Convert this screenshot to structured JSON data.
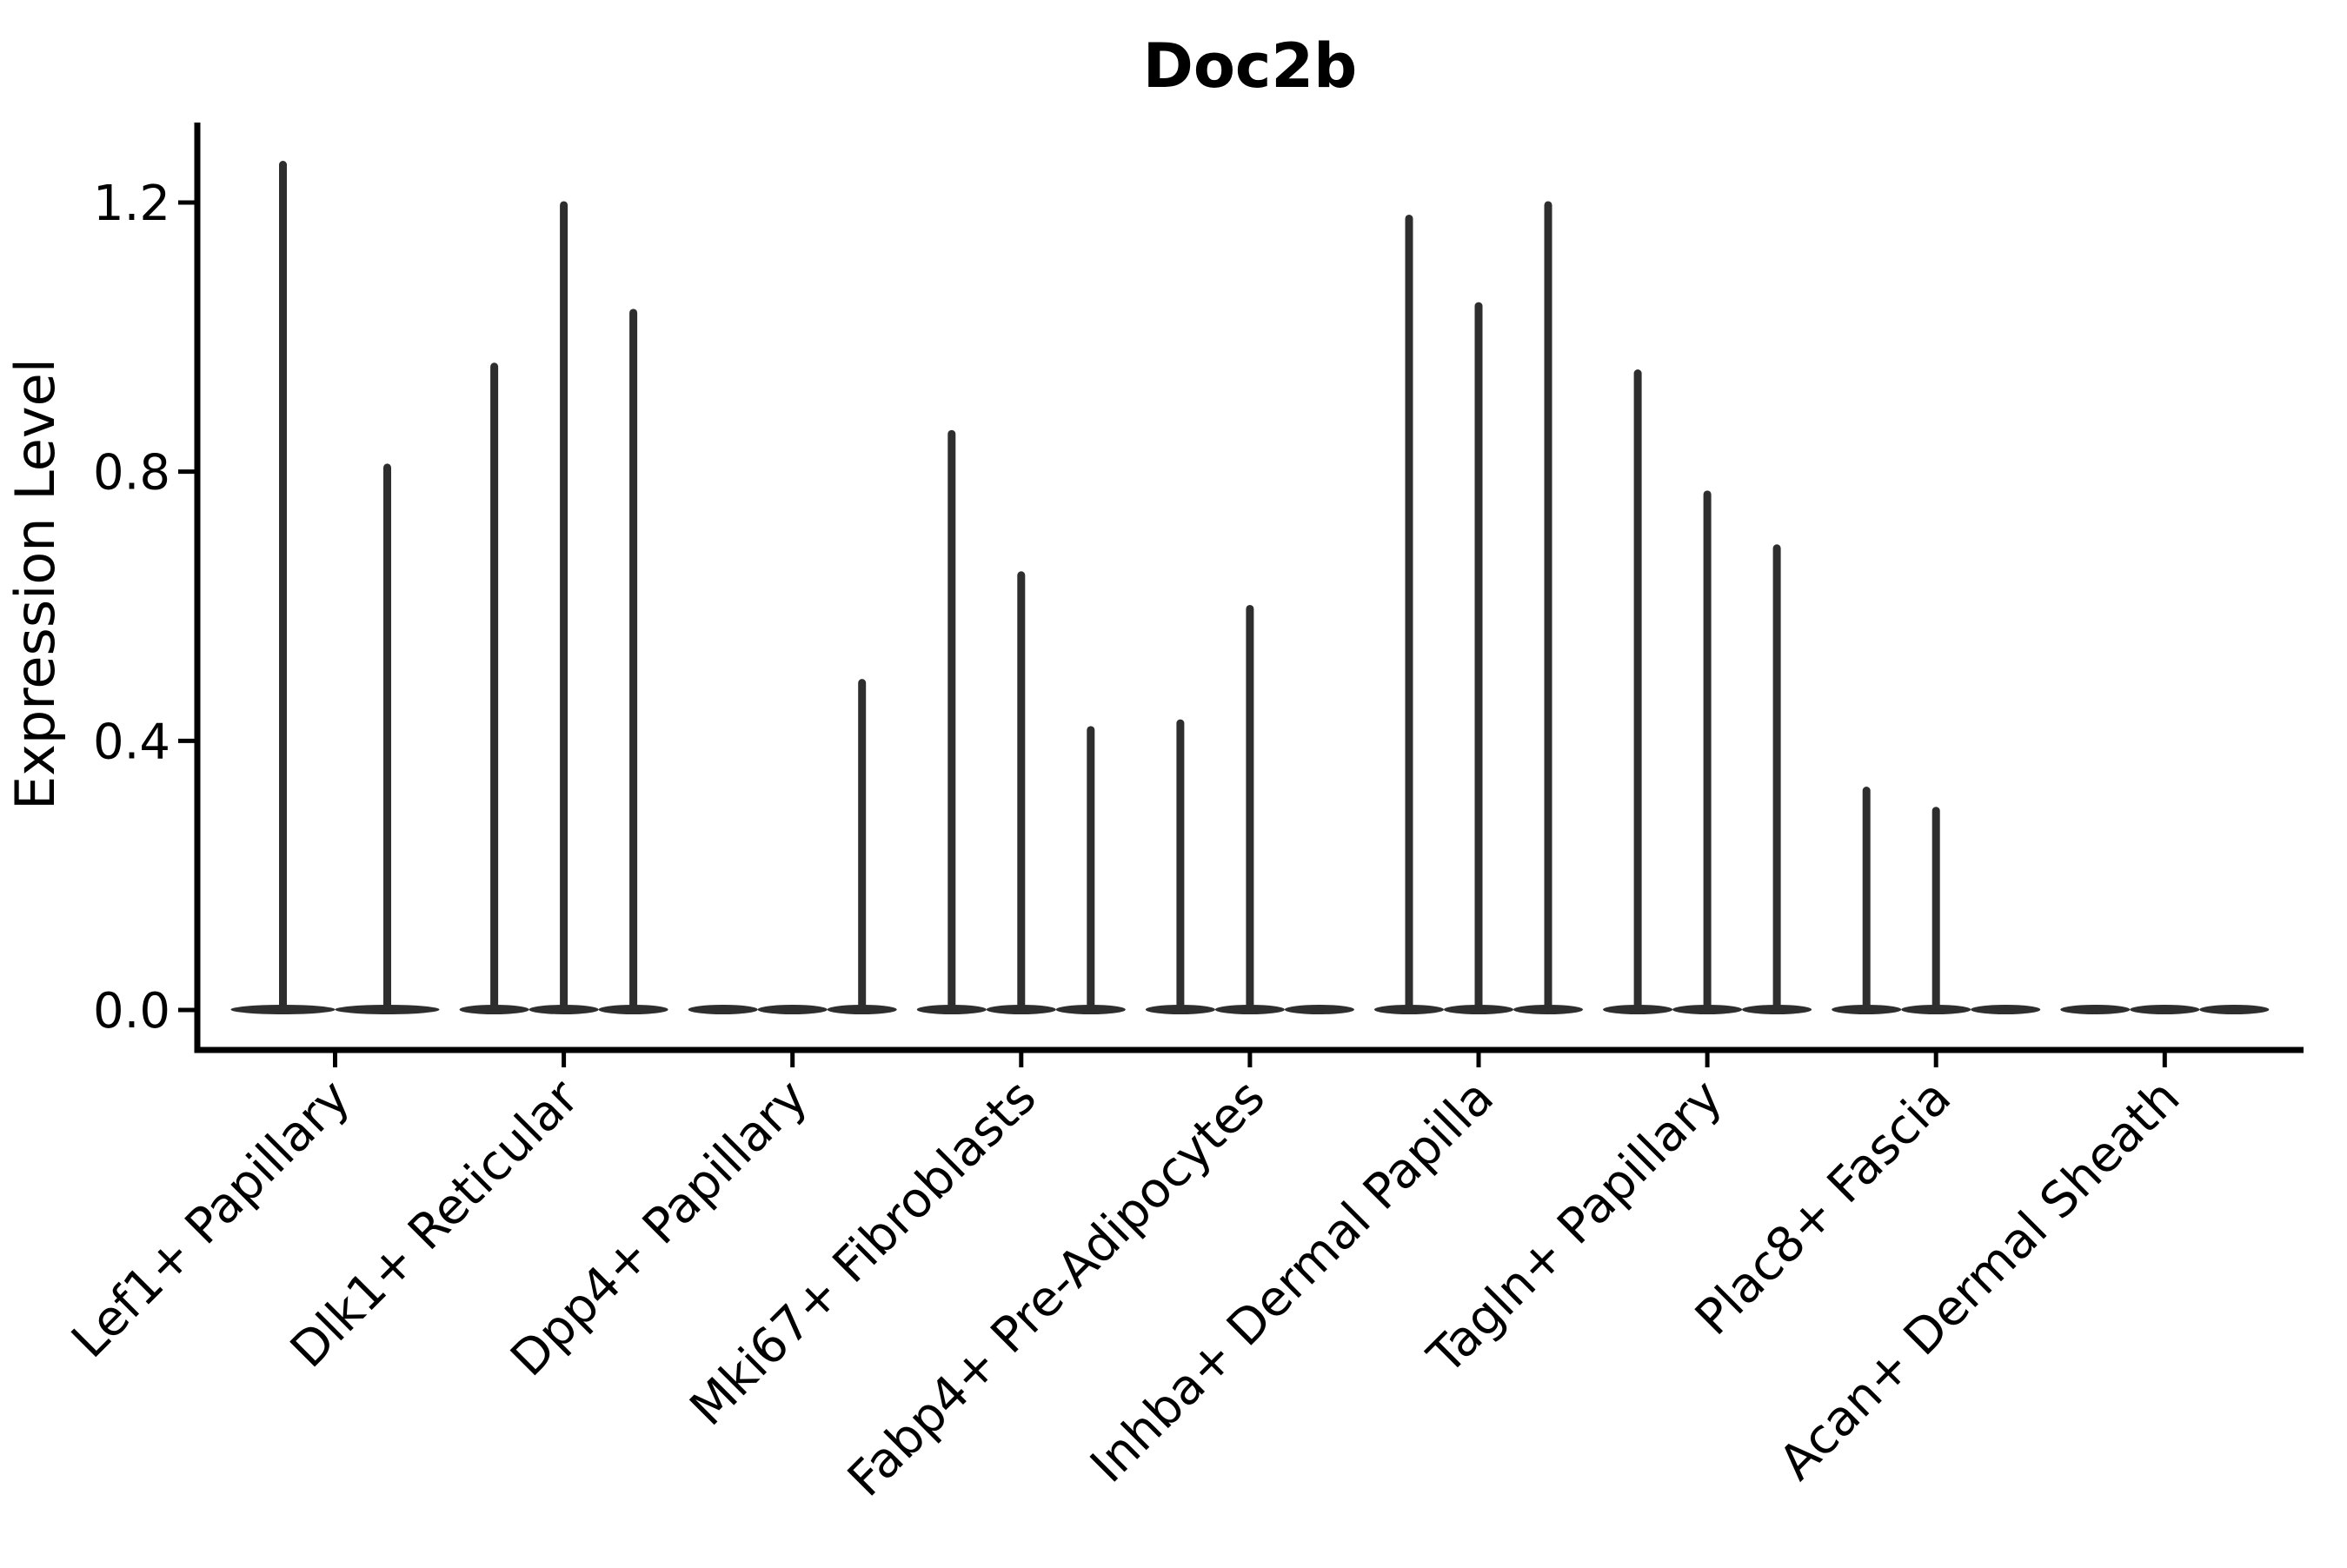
{
  "figure": {
    "background_color": "#ffffff",
    "ink_color": "#000000",
    "violin_color": "#2e2e2e"
  },
  "chart_data": {
    "type": "violin",
    "title": "Doc2b",
    "xlabel": "",
    "ylabel": "Expression Level",
    "yticks": [
      0.0,
      0.4,
      0.8,
      1.2
    ],
    "ytick_labels": [
      "0.0",
      "0.4",
      "0.8",
      "1.2"
    ],
    "ylim": [
      -0.06,
      1.32
    ],
    "grid": false,
    "legend_position": "none",
    "x_tick_label_rotation_deg": 45,
    "categories": [
      {
        "label": "Lef1+ Papillary",
        "violins": [
          {
            "peak": 1.26
          },
          {
            "peak": 0.81
          }
        ]
      },
      {
        "label": "Dlk1+ Reticular",
        "violins": [
          {
            "peak": 0.96
          },
          {
            "peak": 1.2
          },
          {
            "peak": 1.04
          }
        ]
      },
      {
        "label": "Dpp4+ Papillary",
        "violins": [
          {
            "peak": 0.0
          },
          {
            "peak": 0.0
          },
          {
            "peak": 0.49
          }
        ]
      },
      {
        "label": "Mki67+ Fibroblasts",
        "violins": [
          {
            "peak": 0.86
          },
          {
            "peak": 0.65
          },
          {
            "peak": 0.42
          }
        ]
      },
      {
        "label": "Fabp4+ Pre-Adipocytes",
        "violins": [
          {
            "peak": 0.43
          },
          {
            "peak": 0.6
          },
          {
            "peak": 0.0
          }
        ]
      },
      {
        "label": "Inhba+ Dermal Papilla",
        "violins": [
          {
            "peak": 1.18
          },
          {
            "peak": 1.05
          },
          {
            "peak": 1.2
          }
        ]
      },
      {
        "label": "Tagln+ Papillary",
        "violins": [
          {
            "peak": 0.95
          },
          {
            "peak": 0.77
          },
          {
            "peak": 0.69
          }
        ]
      },
      {
        "label": "Plac8+ Fascia",
        "violins": [
          {
            "peak": 0.33
          },
          {
            "peak": 0.3
          },
          {
            "peak": 0.0
          }
        ]
      },
      {
        "label": "Acan+ Dermal Sheath",
        "violins": [
          {
            "peak": 0.0
          },
          {
            "peak": 0.0
          },
          {
            "peak": 0.0
          }
        ]
      }
    ]
  }
}
